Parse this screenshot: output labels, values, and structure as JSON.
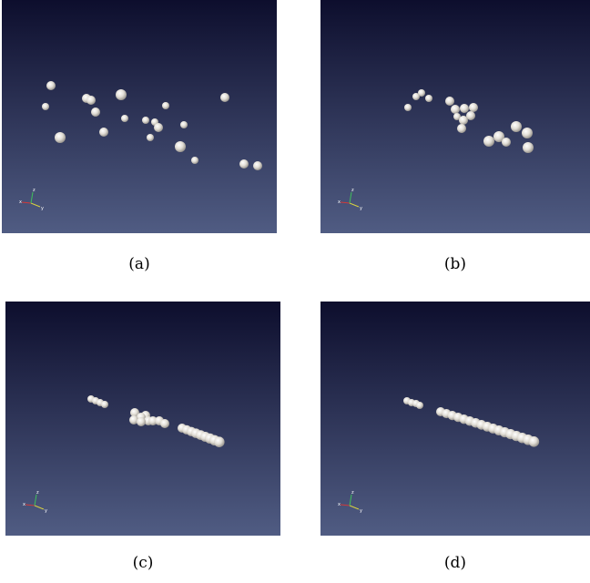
{
  "panels": [
    {
      "caption": "(a)"
    },
    {
      "caption": "(b)"
    },
    {
      "caption": "(c)"
    },
    {
      "caption": "(d)"
    }
  ],
  "axis_labels": [
    "x",
    "y",
    "z"
  ]
}
